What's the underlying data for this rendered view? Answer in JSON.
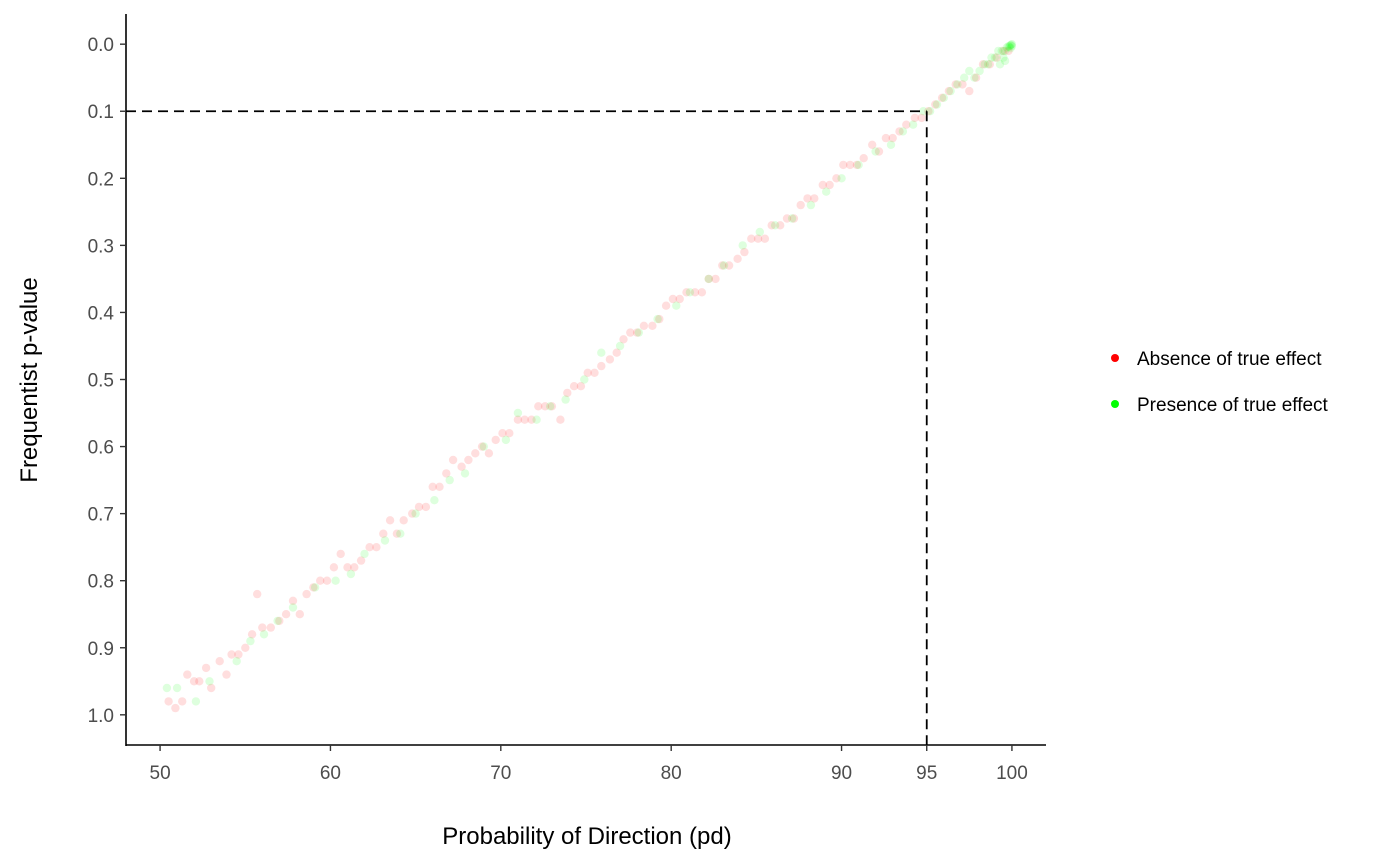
{
  "chart_data": {
    "type": "scatter",
    "xlabel": "Probability of Direction (pd)",
    "ylabel": "Frequentist p-value",
    "xlim": [
      48,
      102
    ],
    "ylim": [
      1.045,
      -0.045
    ],
    "y_reversed": true,
    "x_ticks": [
      50,
      60,
      70,
      80,
      90,
      95,
      100
    ],
    "x_tick_labels": [
      "50",
      "60",
      "70",
      "80",
      "90",
      "95",
      "100"
    ],
    "y_ticks": [
      0.0,
      0.1,
      0.2,
      0.3,
      0.4,
      0.5,
      0.6,
      0.7,
      0.8,
      0.9,
      1.0
    ],
    "y_tick_labels": [
      "0.0",
      "0.1",
      "0.2",
      "0.3",
      "0.4",
      "0.5",
      "0.6",
      "0.7",
      "0.8",
      "0.9",
      "1.0"
    ],
    "grid": false,
    "legend_position": "right",
    "reference_lines": [
      {
        "type": "horizontal",
        "y": 0.1,
        "x_from": 48,
        "x_to": 95,
        "style": "dashed"
      },
      {
        "type": "vertical",
        "x": 95,
        "y_from": 0.1,
        "y_to": 1.045,
        "style": "dashed"
      }
    ],
    "series": [
      {
        "name": "Absence of true effect",
        "color": "#ff0000",
        "point_alpha": 0.13,
        "points": [
          [
            50.5,
            0.98
          ],
          [
            50.9,
            0.99
          ],
          [
            51.3,
            0.98
          ],
          [
            51.6,
            0.94
          ],
          [
            52.0,
            0.95
          ],
          [
            52.3,
            0.95
          ],
          [
            52.7,
            0.93
          ],
          [
            53.0,
            0.96
          ],
          [
            53.5,
            0.92
          ],
          [
            53.9,
            0.94
          ],
          [
            54.2,
            0.91
          ],
          [
            54.6,
            0.91
          ],
          [
            55.0,
            0.9
          ],
          [
            55.4,
            0.88
          ],
          [
            55.7,
            0.82
          ],
          [
            56.0,
            0.87
          ],
          [
            56.5,
            0.87
          ],
          [
            57.0,
            0.86
          ],
          [
            57.4,
            0.85
          ],
          [
            57.8,
            0.83
          ],
          [
            58.2,
            0.85
          ],
          [
            58.6,
            0.82
          ],
          [
            59.0,
            0.81
          ],
          [
            59.4,
            0.8
          ],
          [
            59.8,
            0.8
          ],
          [
            60.2,
            0.78
          ],
          [
            60.6,
            0.76
          ],
          [
            61.0,
            0.78
          ],
          [
            61.4,
            0.78
          ],
          [
            61.8,
            0.77
          ],
          [
            62.3,
            0.75
          ],
          [
            62.7,
            0.75
          ],
          [
            63.1,
            0.73
          ],
          [
            63.5,
            0.71
          ],
          [
            63.9,
            0.73
          ],
          [
            64.3,
            0.71
          ],
          [
            64.8,
            0.7
          ],
          [
            65.2,
            0.69
          ],
          [
            65.6,
            0.69
          ],
          [
            66.0,
            0.66
          ],
          [
            66.4,
            0.66
          ],
          [
            66.8,
            0.64
          ],
          [
            67.2,
            0.62
          ],
          [
            67.7,
            0.63
          ],
          [
            68.1,
            0.62
          ],
          [
            68.5,
            0.61
          ],
          [
            68.9,
            0.6
          ],
          [
            69.3,
            0.61
          ],
          [
            69.7,
            0.59
          ],
          [
            70.1,
            0.58
          ],
          [
            70.5,
            0.58
          ],
          [
            71.0,
            0.56
          ],
          [
            71.4,
            0.56
          ],
          [
            71.8,
            0.56
          ],
          [
            72.2,
            0.54
          ],
          [
            72.6,
            0.54
          ],
          [
            73.0,
            0.54
          ],
          [
            73.5,
            0.56
          ],
          [
            73.9,
            0.52
          ],
          [
            74.3,
            0.51
          ],
          [
            74.7,
            0.51
          ],
          [
            75.1,
            0.49
          ],
          [
            75.5,
            0.49
          ],
          [
            75.9,
            0.48
          ],
          [
            76.4,
            0.47
          ],
          [
            76.8,
            0.46
          ],
          [
            77.2,
            0.44
          ],
          [
            77.6,
            0.43
          ],
          [
            78.0,
            0.43
          ],
          [
            78.4,
            0.42
          ],
          [
            78.9,
            0.42
          ],
          [
            79.3,
            0.41
          ],
          [
            79.7,
            0.39
          ],
          [
            80.1,
            0.38
          ],
          [
            80.5,
            0.38
          ],
          [
            80.9,
            0.37
          ],
          [
            81.4,
            0.37
          ],
          [
            81.8,
            0.37
          ],
          [
            82.2,
            0.35
          ],
          [
            82.6,
            0.35
          ],
          [
            83.0,
            0.33
          ],
          [
            83.4,
            0.33
          ],
          [
            83.9,
            0.32
          ],
          [
            84.3,
            0.31
          ],
          [
            84.7,
            0.29
          ],
          [
            85.1,
            0.29
          ],
          [
            85.5,
            0.29
          ],
          [
            85.9,
            0.27
          ],
          [
            86.4,
            0.27
          ],
          [
            86.8,
            0.26
          ],
          [
            87.2,
            0.26
          ],
          [
            87.6,
            0.24
          ],
          [
            88.0,
            0.23
          ],
          [
            88.4,
            0.23
          ],
          [
            88.9,
            0.21
          ],
          [
            89.3,
            0.21
          ],
          [
            89.7,
            0.2
          ],
          [
            90.1,
            0.18
          ],
          [
            90.5,
            0.18
          ],
          [
            90.9,
            0.18
          ],
          [
            91.3,
            0.17
          ],
          [
            91.8,
            0.15
          ],
          [
            92.2,
            0.16
          ],
          [
            92.6,
            0.14
          ],
          [
            93.0,
            0.14
          ],
          [
            93.4,
            0.13
          ],
          [
            93.8,
            0.12
          ],
          [
            94.3,
            0.11
          ],
          [
            94.7,
            0.11
          ],
          [
            95.1,
            0.1
          ],
          [
            95.5,
            0.09
          ],
          [
            95.9,
            0.08
          ],
          [
            96.3,
            0.07
          ],
          [
            96.7,
            0.06
          ],
          [
            97.1,
            0.06
          ],
          [
            97.5,
            0.07
          ],
          [
            97.9,
            0.05
          ],
          [
            98.3,
            0.03
          ],
          [
            98.7,
            0.03
          ],
          [
            99.1,
            0.02
          ],
          [
            99.5,
            0.01
          ],
          [
            99.8,
            0.01
          ]
        ]
      },
      {
        "name": "Presence of true effect",
        "color": "#00ff00",
        "point_alpha": 0.13,
        "points": [
          [
            50.4,
            0.96
          ],
          [
            51.0,
            0.96
          ],
          [
            52.1,
            0.98
          ],
          [
            52.9,
            0.95
          ],
          [
            54.5,
            0.92
          ],
          [
            55.3,
            0.89
          ],
          [
            56.1,
            0.88
          ],
          [
            56.9,
            0.86
          ],
          [
            57.8,
            0.84
          ],
          [
            59.1,
            0.81
          ],
          [
            60.3,
            0.8
          ],
          [
            61.2,
            0.79
          ],
          [
            62.0,
            0.76
          ],
          [
            63.2,
            0.74
          ],
          [
            64.1,
            0.73
          ],
          [
            65.0,
            0.7
          ],
          [
            66.1,
            0.68
          ],
          [
            67.0,
            0.65
          ],
          [
            67.9,
            0.64
          ],
          [
            69.0,
            0.6
          ],
          [
            70.3,
            0.59
          ],
          [
            71.0,
            0.55
          ],
          [
            72.1,
            0.56
          ],
          [
            72.9,
            0.54
          ],
          [
            73.8,
            0.53
          ],
          [
            74.9,
            0.5
          ],
          [
            75.9,
            0.46
          ],
          [
            77.0,
            0.45
          ],
          [
            78.1,
            0.43
          ],
          [
            79.2,
            0.41
          ],
          [
            80.3,
            0.39
          ],
          [
            81.1,
            0.37
          ],
          [
            82.2,
            0.35
          ],
          [
            83.1,
            0.33
          ],
          [
            84.2,
            0.3
          ],
          [
            85.2,
            0.28
          ],
          [
            86.1,
            0.27
          ],
          [
            87.1,
            0.26
          ],
          [
            88.2,
            0.24
          ],
          [
            89.1,
            0.22
          ],
          [
            90.0,
            0.2
          ],
          [
            91.0,
            0.18
          ],
          [
            92.0,
            0.16
          ],
          [
            92.9,
            0.15
          ],
          [
            93.6,
            0.13
          ],
          [
            94.2,
            0.12
          ],
          [
            94.8,
            0.1
          ],
          [
            95.2,
            0.1
          ],
          [
            95.6,
            0.09
          ],
          [
            96.0,
            0.08
          ],
          [
            96.4,
            0.07
          ],
          [
            96.8,
            0.06
          ],
          [
            97.2,
            0.05
          ],
          [
            97.5,
            0.04
          ],
          [
            97.8,
            0.05
          ],
          [
            98.1,
            0.04
          ],
          [
            98.4,
            0.03
          ],
          [
            98.6,
            0.03
          ],
          [
            98.8,
            0.02
          ],
          [
            99.0,
            0.02
          ],
          [
            99.2,
            0.01
          ],
          [
            99.4,
            0.01
          ],
          [
            99.5,
            0.02
          ],
          [
            99.6,
            0.01
          ],
          [
            99.7,
            0.005
          ],
          [
            99.8,
            0.003
          ],
          [
            99.85,
            0.004
          ],
          [
            99.9,
            0.002
          ],
          [
            99.95,
            0.001
          ],
          [
            100.0,
            0.0
          ],
          [
            100.0,
            0.003
          ],
          [
            99.92,
            0.006
          ],
          [
            99.6,
            0.025
          ],
          [
            99.3,
            0.03
          ]
        ]
      }
    ]
  }
}
